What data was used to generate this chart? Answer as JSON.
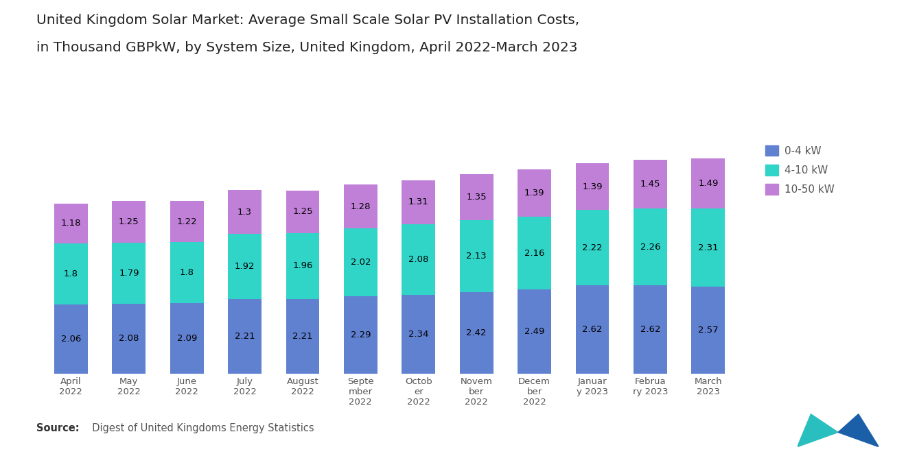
{
  "title_line1": "United Kingdom Solar Market: Average Small Scale Solar PV Installation Costs,",
  "title_line2": "in Thousand GBPkW, by System Size, United Kingdom, April 2022-March 2023",
  "categories": [
    "April\n2022",
    "May\n2022",
    "June\n2022",
    "July\n2022",
    "August\n2022",
    "Septe\nmber\n2022",
    "Octob\ner\n2022",
    "Novem\nber\n2022",
    "Decem\nber\n2022",
    "Januar\ny 2023",
    "Februa\nry 2023",
    "March\n2023"
  ],
  "blue_values": [
    2.06,
    2.08,
    2.09,
    2.21,
    2.21,
    2.29,
    2.34,
    2.42,
    2.49,
    2.62,
    2.62,
    2.57
  ],
  "cyan_values": [
    1.8,
    1.79,
    1.8,
    1.92,
    1.96,
    2.02,
    2.08,
    2.13,
    2.16,
    2.22,
    2.26,
    2.31
  ],
  "purple_values": [
    1.18,
    1.25,
    1.22,
    1.3,
    1.25,
    1.28,
    1.31,
    1.35,
    1.39,
    1.39,
    1.45,
    1.49
  ],
  "blue_color": "#6080D0",
  "cyan_color": "#30D5C8",
  "purple_color": "#C080D8",
  "legend_labels": [
    "0-4 kW",
    "4-10 kW",
    "10-50 kW"
  ],
  "source_bold": "Source:",
  "source_rest": "  Digest of United Kingdoms Energy Statistics",
  "bg_color": "#FFFFFF",
  "title_fontsize": 14.5,
  "label_fontsize": 9.5,
  "tick_fontsize": 9.5,
  "legend_fontsize": 11
}
